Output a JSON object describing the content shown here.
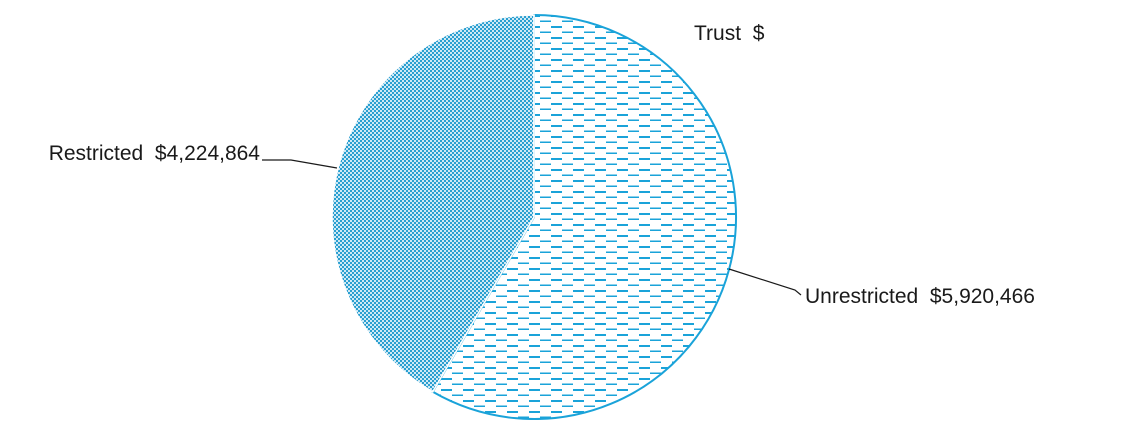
{
  "chart_data": {
    "type": "pie",
    "title": "",
    "categories": [
      "Unrestricted",
      "Restricted",
      "Trust"
    ],
    "values": [
      5920466,
      4224864,
      0
    ],
    "label_text": [
      "Unrestricted  $5,920,466",
      "Restricted  $4,224,864",
      "Trust  $"
    ],
    "legend": "none",
    "colors": {
      "edge": "#1aa3d9",
      "dash": "#1aa3d9",
      "dot": "#2a9fd0",
      "leader": "#1a1a1a"
    },
    "patterns": [
      "dashed-horizontal",
      "dotted-grid",
      "none"
    ]
  }
}
